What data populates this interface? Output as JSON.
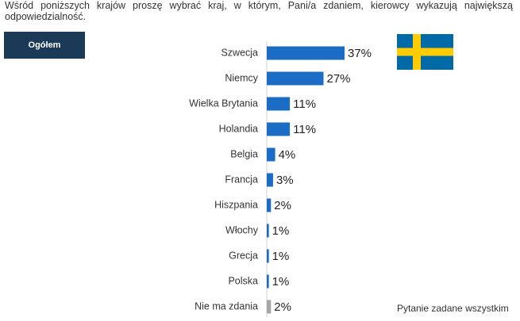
{
  "chart_data": {
    "type": "hbar",
    "title": "Wśród poniższych krajów proszę wybrać kraj, w którym, Pani/a zdaniem, kierowcy wykazują największą odpowiedzialność.",
    "filter_label": "Ogółem",
    "footnote": "Pytanie zadane wszystkim",
    "categories": [
      "Szwecja",
      "Niemcy",
      "Wielka Brytania",
      "Holandia",
      "Belgia",
      "Francja",
      "Hiszpania",
      "Włochy",
      "Grecja",
      "Polska",
      "Nie ma zdania"
    ],
    "values": [
      37,
      27,
      11,
      11,
      4,
      3,
      2,
      1,
      1,
      1,
      2
    ],
    "value_labels": [
      "37%",
      "27%",
      "11%",
      "11%",
      "4%",
      "3%",
      "2%",
      "1%",
      "1%",
      "1%",
      "2%"
    ],
    "colors": [
      "#1a6cc4",
      "#1a6cc4",
      "#1a6cc4",
      "#1a6cc4",
      "#1a6cc4",
      "#1a6cc4",
      "#1a6cc4",
      "#1a6cc4",
      "#1a6cc4",
      "#1a6cc4",
      "#a6a6a6"
    ]
  }
}
